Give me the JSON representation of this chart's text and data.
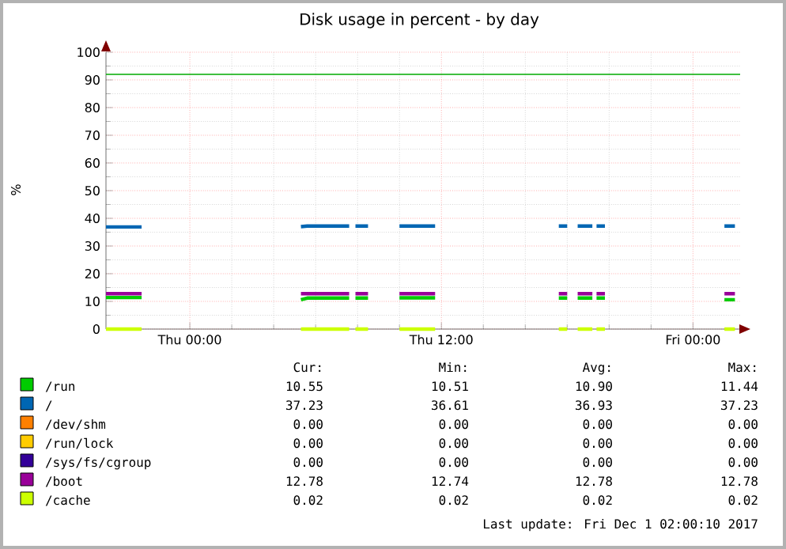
{
  "chart_data": {
    "type": "line",
    "title": "Disk usage in percent - by day",
    "ylabel": "%",
    "x": [
      "2017-11-29T20:00",
      "2017-11-29T21:42",
      "2017-11-29T21:48",
      "2017-11-30T05:18",
      "2017-11-30T05:36",
      "2017-11-30T07:36",
      "2017-11-30T07:42",
      "2017-11-30T07:54",
      "2017-11-30T08:30",
      "2017-11-30T08:36",
      "2017-11-30T10:00",
      "2017-11-30T11:42",
      "2017-11-30T11:48",
      "2017-11-30T17:36",
      "2017-11-30T18:00",
      "2017-11-30T18:06",
      "2017-11-30T18:30",
      "2017-11-30T19:12",
      "2017-11-30T19:18",
      "2017-11-30T19:24",
      "2017-11-30T19:48",
      "2017-11-30T19:54",
      "2017-12-01T01:30",
      "2017-12-01T02:00"
    ],
    "series": [
      {
        "name": "/run",
        "color": "#00cc00",
        "values": [
          11.4,
          11.4,
          null,
          10.6,
          11.2,
          11.2,
          null,
          11.2,
          11.2,
          null,
          11.3,
          11.3,
          null,
          11.2,
          11.2,
          null,
          11.2,
          11.2,
          null,
          11.2,
          11.2,
          null,
          10.6,
          10.6
        ]
      },
      {
        "name": "/",
        "color": "#0066b3",
        "values": [
          36.9,
          36.9,
          null,
          37.0,
          37.2,
          37.2,
          null,
          37.2,
          37.2,
          null,
          37.2,
          37.2,
          null,
          37.2,
          37.2,
          null,
          37.2,
          37.2,
          null,
          37.2,
          37.2,
          null,
          37.2,
          37.2
        ]
      },
      {
        "name": "/dev/shm",
        "color": "#ff8000",
        "values": [
          null,
          null,
          null,
          null,
          null,
          null,
          null,
          null,
          null,
          null,
          null,
          null,
          null,
          null,
          null,
          null,
          null,
          null,
          null,
          null,
          null,
          null,
          null,
          null
        ]
      },
      {
        "name": "/run/lock",
        "color": "#ffcc00",
        "values": [
          null,
          null,
          null,
          null,
          null,
          null,
          null,
          null,
          null,
          null,
          null,
          null,
          null,
          null,
          null,
          null,
          null,
          null,
          null,
          null,
          null,
          null,
          null,
          null
        ]
      },
      {
        "name": "/sys/fs/cgroup",
        "color": "#330099",
        "values": [
          null,
          null,
          null,
          null,
          null,
          null,
          null,
          null,
          null,
          null,
          null,
          null,
          null,
          null,
          null,
          null,
          null,
          null,
          null,
          null,
          null,
          null,
          null,
          null
        ]
      },
      {
        "name": "/boot",
        "color": "#990099",
        "values": [
          12.8,
          12.8,
          null,
          12.8,
          12.8,
          12.8,
          null,
          12.8,
          12.8,
          null,
          12.8,
          12.8,
          null,
          12.8,
          12.8,
          null,
          12.8,
          12.8,
          null,
          12.8,
          12.8,
          null,
          12.8,
          12.8
        ]
      },
      {
        "name": "/cache",
        "color": "#ccff00",
        "values": [
          0,
          0,
          null,
          0,
          0,
          0,
          null,
          0,
          0,
          null,
          0,
          0,
          null,
          0,
          0,
          null,
          0,
          0,
          null,
          0,
          0,
          null,
          0,
          0
        ]
      }
    ],
    "xlim": [
      "2017-11-29T20:00",
      "2017-12-01T02:15"
    ],
    "xticks": [
      {
        "value": "2017-11-30T00:00",
        "label": "Thu 00:00"
      },
      {
        "value": "2017-11-30T12:00",
        "label": "Thu 12:00"
      },
      {
        "value": "2017-12-01T00:00",
        "label": "Fri 00:00"
      }
    ],
    "ylim": [
      0,
      100
    ],
    "yticks": [
      0,
      10,
      20,
      30,
      40,
      50,
      60,
      70,
      80,
      90,
      100
    ],
    "ref_lines": [
      {
        "axis": "y",
        "value": 92,
        "color": "#00aa00"
      }
    ],
    "grid": true,
    "legend": "bottom",
    "marker": "none",
    "line_style": "solid",
    "annotations": [
      "Cur:",
      "Min:",
      "Avg:",
      "Max:",
      "10.55",
      "10.51",
      "10.90",
      "11.44",
      "37.23",
      "36.61",
      "36.93",
      "37.23",
      "0.00",
      "0.00",
      "0.00",
      "0.00",
      "0.00",
      "0.00",
      "0.00",
      "0.00",
      "0.00",
      "0.00",
      "0.00",
      "0.00",
      "12.78",
      "12.74",
      "12.78",
      "12.78",
      "0.02",
      "0.02",
      "0.02",
      "0.02",
      "Last update: Fri Dec  1 02:00:10 2017"
    ]
  }
}
